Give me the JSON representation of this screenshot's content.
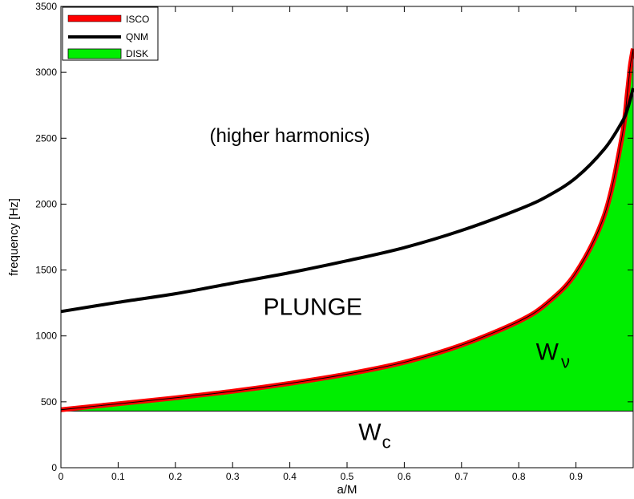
{
  "chart_data": {
    "type": "line",
    "xlabel": "a/M",
    "ylabel": "frequency [Hz]",
    "xlim": [
      0,
      1
    ],
    "ylim": [
      0,
      3500
    ],
    "xticks": [
      "0",
      "0.1",
      "0.2",
      "0.3",
      "0.4",
      "0.5",
      "0.6",
      "0.7",
      "0.8",
      "0.9"
    ],
    "yticks": [
      "0",
      "500",
      "1000",
      "1500",
      "2000",
      "2500",
      "3000",
      "3500"
    ],
    "grid": false,
    "legend_position": "top-left",
    "disk_floor": 430,
    "series": [
      {
        "name": "ISCO",
        "color": "#ff0000",
        "x": [
          0,
          0.1,
          0.2,
          0.3,
          0.4,
          0.5,
          0.6,
          0.7,
          0.8,
          0.85,
          0.9,
          0.95,
          0.98,
          0.99,
          0.995,
          1.0
        ],
        "y": [
          440,
          485,
          530,
          580,
          640,
          710,
          800,
          930,
          1110,
          1250,
          1480,
          1920,
          2500,
          2850,
          3050,
          3180
        ]
      },
      {
        "name": "QNM",
        "color": "#000000",
        "x": [
          0,
          0.1,
          0.2,
          0.3,
          0.4,
          0.5,
          0.6,
          0.7,
          0.8,
          0.85,
          0.9,
          0.95,
          0.98,
          0.99,
          1.0
        ],
        "y": [
          1185,
          1255,
          1320,
          1400,
          1480,
          1570,
          1670,
          1800,
          1960,
          2060,
          2200,
          2420,
          2620,
          2720,
          2880
        ]
      },
      {
        "name": "DISK",
        "color": "#00ee00",
        "fill": true
      }
    ],
    "annotations": [
      {
        "id": "harmonics",
        "text": "(higher harmonics)",
        "x": 0.4,
        "y": 2470
      },
      {
        "id": "plunge",
        "text": "PLUNGE",
        "x": 0.44,
        "y": 1160
      },
      {
        "id": "wnu",
        "text": "W",
        "sub": "ν",
        "x": 0.83,
        "y": 820
      },
      {
        "id": "wc",
        "text": "W",
        "sub": "c",
        "x": 0.52,
        "y": 210
      }
    ]
  }
}
